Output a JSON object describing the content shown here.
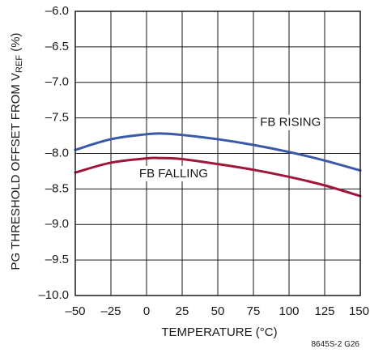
{
  "chart_data": {
    "type": "line",
    "xlabel": "TEMPERATURE (°C)",
    "ylabel_main": "PG THRESHOLD OFFSET FROM V",
    "ylabel_sub": "REF",
    "ylabel_unit": " (%)",
    "xlim": [
      -50,
      150
    ],
    "ylim": [
      -10.0,
      -6.0
    ],
    "x_ticks": [
      -50,
      -25,
      0,
      25,
      50,
      75,
      100,
      125,
      150
    ],
    "x_tick_labels": [
      "–50",
      "–25",
      "0",
      "25",
      "50",
      "75",
      "100",
      "125",
      "150"
    ],
    "y_ticks": [
      -6.0,
      -6.5,
      -7.0,
      -7.5,
      -8.0,
      -8.5,
      -9.0,
      -9.5,
      -10.0
    ],
    "y_tick_labels": [
      "–6.0",
      "–6.5",
      "–7.0",
      "–7.5",
      "–8.0",
      "–8.5",
      "–9.0",
      "–9.5",
      "–10.0"
    ],
    "grid": true,
    "series": [
      {
        "name": "FB RISING",
        "color": "#3a5aa8",
        "x": [
          -50,
          -25,
          0,
          10,
          25,
          50,
          75,
          100,
          125,
          150
        ],
        "y": [
          -7.95,
          -7.8,
          -7.73,
          -7.72,
          -7.74,
          -7.8,
          -7.88,
          -7.98,
          -8.1,
          -8.24
        ]
      },
      {
        "name": "FB FALLING",
        "color": "#a0163a",
        "x": [
          -50,
          -25,
          0,
          10,
          25,
          50,
          75,
          100,
          125,
          150
        ],
        "y": [
          -8.27,
          -8.13,
          -8.07,
          -8.065,
          -8.08,
          -8.15,
          -8.23,
          -8.33,
          -8.45,
          -8.6
        ]
      }
    ],
    "annotations": [
      {
        "text": "FB RISING",
        "x": 101,
        "y": -7.57
      },
      {
        "text": "FB FALLING",
        "x": 19,
        "y": -8.29
      }
    ],
    "figure_code": "8645S-2 G26"
  }
}
